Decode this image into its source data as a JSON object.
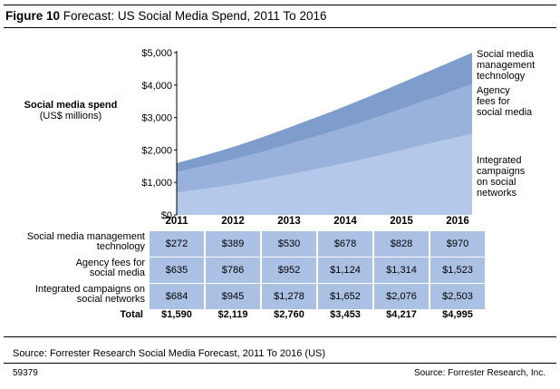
{
  "figure": {
    "label": "Figure 10",
    "title": "Forecast: US Social Media Spend, 2011 To 2016"
  },
  "y_axis": {
    "label_bold": "Social media spend",
    "label_unit": "(US$ millions)"
  },
  "colors": {
    "management": "#7e9ccc",
    "agency": "#98b2dc",
    "integrated": "#b4c9ea",
    "table_cell": "#aac1e4"
  },
  "chart_data": {
    "type": "area",
    "stacked": true,
    "x": [
      "2011",
      "2012",
      "2013",
      "2014",
      "2015",
      "2016"
    ],
    "ylim": [
      0,
      5000
    ],
    "yticks": [
      0,
      1000,
      2000,
      3000,
      4000,
      5000
    ],
    "ytick_labels": [
      "$0",
      "$1,000",
      "$2,000",
      "$3,000",
      "$4,000",
      "$5,000"
    ],
    "series": [
      {
        "name": "Integrated campaigns on social networks",
        "values": [
          684,
          945,
          1278,
          1652,
          2076,
          2503
        ]
      },
      {
        "name": "Agency fees for social media",
        "values": [
          635,
          786,
          952,
          1124,
          1314,
          1523
        ]
      },
      {
        "name": "Social media management technology",
        "values": [
          272,
          389,
          530,
          678,
          828,
          970
        ]
      }
    ],
    "legend_placement": "right"
  },
  "legend": [
    {
      "key": "management",
      "lines": [
        "Social media",
        "management",
        "technology"
      ]
    },
    {
      "key": "agency",
      "lines": [
        "Agency",
        "fees for",
        "social media"
      ]
    },
    {
      "key": "integrated",
      "lines": [
        "Integrated",
        "campaigns",
        "on social",
        "networks"
      ]
    }
  ],
  "table": {
    "rows": [
      {
        "label_lines": [
          "Social media management",
          "technology"
        ],
        "values": [
          "$272",
          "$389",
          "$530",
          "$678",
          "$828",
          "$970"
        ]
      },
      {
        "label_lines": [
          "Agency fees for",
          "social media"
        ],
        "values": [
          "$635",
          "$786",
          "$952",
          "$1,124",
          "$1,314",
          "$1,523"
        ]
      },
      {
        "label_lines": [
          "Integrated campaigns on",
          "social networks"
        ],
        "values": [
          "$684",
          "$945",
          "$1,278",
          "$1,652",
          "$2,076",
          "$2,503"
        ]
      }
    ],
    "total_label": "Total",
    "totals": [
      "$1,590",
      "$2,119",
      "$2,760",
      "$3,453",
      "$4,217",
      "$4,995"
    ]
  },
  "footer": {
    "source": "Source: Forrester Research Social Media Forecast, 2011 To 2016 (US)",
    "figure_id": "59379",
    "credit": "Source: Forrester Research, Inc."
  }
}
